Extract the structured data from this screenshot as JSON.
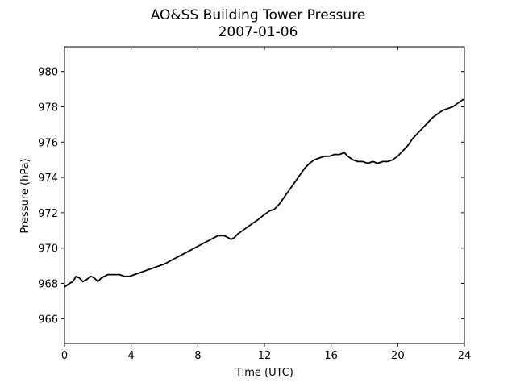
{
  "chart_data": {
    "type": "line",
    "title": "AO&SS Building Tower Pressure",
    "subtitle": "2007-01-06",
    "xlabel": "Time (UTC)",
    "ylabel": "Pressure (hPa)",
    "xlim": [
      0,
      24
    ],
    "ylim": [
      964.6,
      981.4
    ],
    "xticks": [
      0,
      4,
      8,
      12,
      16,
      20,
      24
    ],
    "yticks": [
      966,
      968,
      970,
      972,
      974,
      976,
      978,
      980
    ],
    "grid": false,
    "legend": "none",
    "series_color": "#000000",
    "series": [
      {
        "x": [
          0,
          0.3,
          0.5,
          0.7,
          0.9,
          1.1,
          1.3,
          1.6,
          1.8,
          2.0,
          2.2,
          2.4,
          2.6,
          2.8,
          3.0,
          3.3,
          3.6,
          3.9,
          4.2,
          4.5,
          4.8,
          5.1,
          5.4,
          5.7,
          6.0,
          6.4,
          6.8,
          7.2,
          7.6,
          8.0,
          8.4,
          8.8,
          9.2,
          9.6,
          9.8,
          10.0,
          10.2,
          10.4,
          10.7,
          11.0,
          11.3,
          11.6,
          12.0,
          12.3,
          12.6,
          12.9,
          13.2,
          13.5,
          13.8,
          14.1,
          14.4,
          14.7,
          15.0,
          15.3,
          15.6,
          15.9,
          16.2,
          16.5,
          16.8,
          17.0,
          17.3,
          17.6,
          17.9,
          18.2,
          18.5,
          18.8,
          19.1,
          19.4,
          19.7,
          20.0,
          20.3,
          20.6,
          20.9,
          21.2,
          21.5,
          21.8,
          22.1,
          22.4,
          22.7,
          23.0,
          23.3,
          23.6,
          23.9,
          24.0
        ],
        "y": [
          967.8,
          968.0,
          968.1,
          968.4,
          968.3,
          968.1,
          968.2,
          968.4,
          968.3,
          968.1,
          968.3,
          968.4,
          968.5,
          968.5,
          968.5,
          968.5,
          968.4,
          968.4,
          968.5,
          968.6,
          968.7,
          968.8,
          968.9,
          969.0,
          969.1,
          969.3,
          969.5,
          969.7,
          969.9,
          970.1,
          970.3,
          970.5,
          970.7,
          970.7,
          970.6,
          970.5,
          970.6,
          970.8,
          971.0,
          971.2,
          971.4,
          971.6,
          971.9,
          972.1,
          972.2,
          972.5,
          972.9,
          973.3,
          973.7,
          974.1,
          974.5,
          974.8,
          975.0,
          975.1,
          975.2,
          975.2,
          975.3,
          975.3,
          975.4,
          975.2,
          975.0,
          974.9,
          974.9,
          974.8,
          974.9,
          974.8,
          974.9,
          974.9,
          975.0,
          975.2,
          975.5,
          975.8,
          976.2,
          976.5,
          976.8,
          977.1,
          977.4,
          977.6,
          977.8,
          977.9,
          978.0,
          978.2,
          978.4,
          978.4
        ]
      }
    ]
  }
}
